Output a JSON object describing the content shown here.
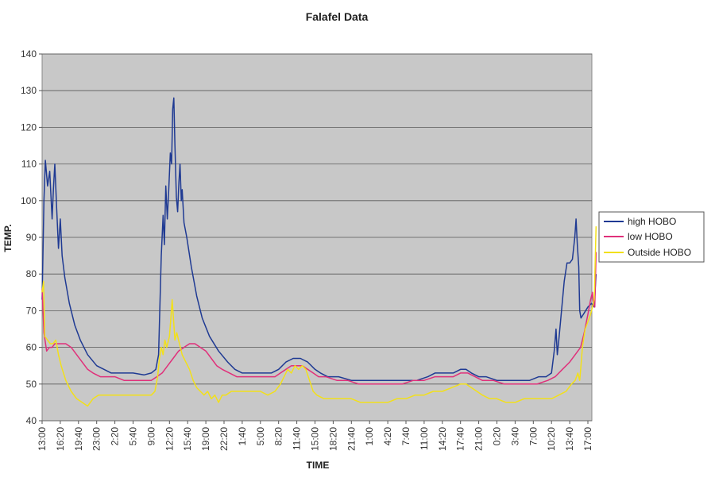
{
  "chart_data": {
    "type": "line",
    "title": "Falafel Data",
    "xlabel": "TIME",
    "ylabel": "TEMP.",
    "ylim": [
      40,
      140
    ],
    "yticks": [
      40,
      50,
      60,
      70,
      80,
      90,
      100,
      110,
      120,
      130,
      140
    ],
    "grid": "horizontal",
    "legend_position": "right",
    "plot_background": "#c8c8c8",
    "categories": [
      "13:00",
      "16:20",
      "19:40",
      "23:00",
      "2:20",
      "5:40",
      "9:00",
      "12:20",
      "15:40",
      "19:00",
      "22:20",
      "1:40",
      "5:00",
      "8:20",
      "11:40",
      "15:00",
      "18:20",
      "21:40",
      "1:00",
      "4:20",
      "7:40",
      "11:00",
      "14:20",
      "17:40",
      "21:00",
      "0:20",
      "3:40",
      "7:00",
      "10:20",
      "13:40",
      "17:00"
    ],
    "series": [
      {
        "name": "high HOBO",
        "color": "#1f3a93",
        "points": [
          [
            0,
            73
          ],
          [
            0.1,
            100
          ],
          [
            0.18,
            111
          ],
          [
            0.3,
            104
          ],
          [
            0.42,
            108
          ],
          [
            0.55,
            95
          ],
          [
            0.62,
            103
          ],
          [
            0.7,
            110
          ],
          [
            0.8,
            98
          ],
          [
            0.9,
            87
          ],
          [
            1.0,
            95
          ],
          [
            1.1,
            85
          ],
          [
            1.25,
            79
          ],
          [
            1.5,
            72
          ],
          [
            1.8,
            66
          ],
          [
            2.1,
            62
          ],
          [
            2.5,
            58
          ],
          [
            3.0,
            55
          ],
          [
            3.4,
            54
          ],
          [
            3.8,
            53
          ],
          [
            4.3,
            53
          ],
          [
            5.0,
            53
          ],
          [
            5.6,
            52.5
          ],
          [
            6.0,
            53
          ],
          [
            6.25,
            54
          ],
          [
            6.4,
            58
          ],
          [
            6.55,
            85
          ],
          [
            6.65,
            96
          ],
          [
            6.72,
            88
          ],
          [
            6.8,
            104
          ],
          [
            6.88,
            95
          ],
          [
            6.95,
            102
          ],
          [
            7.05,
            113
          ],
          [
            7.12,
            110
          ],
          [
            7.18,
            125
          ],
          [
            7.24,
            128
          ],
          [
            7.3,
            115
          ],
          [
            7.38,
            101
          ],
          [
            7.45,
            97
          ],
          [
            7.52,
            105
          ],
          [
            7.58,
            110
          ],
          [
            7.65,
            100
          ],
          [
            7.7,
            103
          ],
          [
            7.8,
            94
          ],
          [
            7.95,
            90
          ],
          [
            8.2,
            82
          ],
          [
            8.5,
            74
          ],
          [
            8.8,
            68
          ],
          [
            9.2,
            63
          ],
          [
            9.7,
            59
          ],
          [
            10.2,
            56
          ],
          [
            10.6,
            54
          ],
          [
            11.0,
            53
          ],
          [
            11.5,
            53
          ],
          [
            12.0,
            53
          ],
          [
            12.6,
            53
          ],
          [
            13.0,
            54
          ],
          [
            13.4,
            56
          ],
          [
            13.8,
            57
          ],
          [
            14.2,
            57
          ],
          [
            14.6,
            56
          ],
          [
            15.0,
            54
          ],
          [
            15.3,
            53
          ],
          [
            15.7,
            52
          ],
          [
            16.3,
            52
          ],
          [
            17.0,
            51
          ],
          [
            17.6,
            51
          ],
          [
            18.2,
            51
          ],
          [
            18.8,
            51
          ],
          [
            19.4,
            51
          ],
          [
            20.0,
            51
          ],
          [
            20.6,
            51
          ],
          [
            21.2,
            52
          ],
          [
            21.6,
            53
          ],
          [
            22.0,
            53
          ],
          [
            22.6,
            53
          ],
          [
            23.0,
            54
          ],
          [
            23.3,
            54
          ],
          [
            23.6,
            53
          ],
          [
            24.0,
            52
          ],
          [
            24.4,
            52
          ],
          [
            25.0,
            51
          ],
          [
            25.6,
            51
          ],
          [
            26.2,
            51
          ],
          [
            26.8,
            51
          ],
          [
            27.3,
            52
          ],
          [
            27.7,
            52
          ],
          [
            28.0,
            53
          ],
          [
            28.15,
            59
          ],
          [
            28.25,
            65
          ],
          [
            28.32,
            58
          ],
          [
            28.4,
            62
          ],
          [
            28.55,
            70
          ],
          [
            28.7,
            78
          ],
          [
            28.85,
            83
          ],
          [
            29.0,
            83
          ],
          [
            29.15,
            84
          ],
          [
            29.28,
            90
          ],
          [
            29.35,
            95
          ],
          [
            29.42,
            88
          ],
          [
            29.5,
            82
          ],
          [
            29.55,
            70
          ],
          [
            29.62,
            68
          ],
          [
            29.75,
            69
          ],
          [
            30.0,
            71
          ],
          [
            30.2,
            72
          ],
          [
            30.35,
            71
          ],
          [
            30.45,
            80
          ]
        ]
      },
      {
        "name": "low HOBO",
        "color": "#e0307a",
        "points": [
          [
            0,
            76
          ],
          [
            0.1,
            64
          ],
          [
            0.25,
            59
          ],
          [
            0.4,
            60
          ],
          [
            0.55,
            60
          ],
          [
            0.7,
            61
          ],
          [
            1.0,
            61
          ],
          [
            1.3,
            61
          ],
          [
            1.6,
            60
          ],
          [
            1.9,
            58
          ],
          [
            2.2,
            56
          ],
          [
            2.5,
            54
          ],
          [
            2.8,
            53
          ],
          [
            3.2,
            52
          ],
          [
            3.6,
            52
          ],
          [
            4.0,
            52
          ],
          [
            4.5,
            51
          ],
          [
            5.0,
            51
          ],
          [
            5.5,
            51
          ],
          [
            6.0,
            51
          ],
          [
            6.3,
            52
          ],
          [
            6.6,
            53
          ],
          [
            6.9,
            55
          ],
          [
            7.2,
            57
          ],
          [
            7.5,
            59
          ],
          [
            7.8,
            60
          ],
          [
            8.1,
            61
          ],
          [
            8.4,
            61
          ],
          [
            8.7,
            60
          ],
          [
            9.0,
            59
          ],
          [
            9.3,
            57
          ],
          [
            9.6,
            55
          ],
          [
            9.9,
            54
          ],
          [
            10.3,
            53
          ],
          [
            10.7,
            52
          ],
          [
            11.2,
            52
          ],
          [
            11.8,
            52
          ],
          [
            12.4,
            52
          ],
          [
            12.8,
            52
          ],
          [
            13.1,
            53
          ],
          [
            13.4,
            54
          ],
          [
            13.7,
            55
          ],
          [
            14.0,
            55
          ],
          [
            14.3,
            55
          ],
          [
            14.6,
            54
          ],
          [
            14.9,
            53
          ],
          [
            15.2,
            52
          ],
          [
            15.6,
            52
          ],
          [
            16.2,
            51
          ],
          [
            16.8,
            51
          ],
          [
            17.4,
            50
          ],
          [
            18.0,
            50
          ],
          [
            18.6,
            50
          ],
          [
            19.2,
            50
          ],
          [
            19.8,
            50
          ],
          [
            20.4,
            51
          ],
          [
            21.0,
            51
          ],
          [
            21.6,
            52
          ],
          [
            22.0,
            52
          ],
          [
            22.6,
            52
          ],
          [
            23.0,
            53
          ],
          [
            23.4,
            53
          ],
          [
            23.8,
            52
          ],
          [
            24.2,
            51
          ],
          [
            24.8,
            51
          ],
          [
            25.4,
            50
          ],
          [
            26.0,
            50
          ],
          [
            26.6,
            50
          ],
          [
            27.2,
            50
          ],
          [
            27.8,
            51
          ],
          [
            28.2,
            52
          ],
          [
            28.6,
            54
          ],
          [
            29.0,
            56
          ],
          [
            29.3,
            58
          ],
          [
            29.6,
            60
          ],
          [
            29.8,
            64
          ],
          [
            30.0,
            69
          ],
          [
            30.15,
            73
          ],
          [
            30.25,
            75
          ],
          [
            30.3,
            72
          ],
          [
            30.38,
            71
          ],
          [
            30.45,
            86
          ]
        ]
      },
      {
        "name": "Outside HOBO",
        "color": "#f2e01a",
        "points": [
          [
            0,
            75
          ],
          [
            0.08,
            78
          ],
          [
            0.15,
            63
          ],
          [
            0.3,
            62
          ],
          [
            0.45,
            61
          ],
          [
            0.6,
            61
          ],
          [
            0.75,
            62
          ],
          [
            0.9,
            58
          ],
          [
            1.05,
            55
          ],
          [
            1.3,
            51
          ],
          [
            1.6,
            48
          ],
          [
            1.9,
            46
          ],
          [
            2.2,
            45
          ],
          [
            2.5,
            44
          ],
          [
            2.8,
            46
          ],
          [
            3.1,
            47
          ],
          [
            3.5,
            47
          ],
          [
            4.0,
            47
          ],
          [
            4.5,
            47
          ],
          [
            5.0,
            47
          ],
          [
            5.5,
            47
          ],
          [
            6.0,
            47
          ],
          [
            6.2,
            48
          ],
          [
            6.35,
            52
          ],
          [
            6.45,
            57
          ],
          [
            6.55,
            60
          ],
          [
            6.65,
            58
          ],
          [
            6.75,
            62
          ],
          [
            6.85,
            60
          ],
          [
            7.0,
            63
          ],
          [
            7.08,
            68
          ],
          [
            7.15,
            73
          ],
          [
            7.22,
            68
          ],
          [
            7.3,
            62
          ],
          [
            7.4,
            64
          ],
          [
            7.55,
            61
          ],
          [
            7.7,
            58
          ],
          [
            7.9,
            56
          ],
          [
            8.1,
            54
          ],
          [
            8.3,
            51
          ],
          [
            8.5,
            49
          ],
          [
            8.7,
            48
          ],
          [
            8.9,
            47
          ],
          [
            9.1,
            48
          ],
          [
            9.3,
            46
          ],
          [
            9.5,
            47
          ],
          [
            9.7,
            45
          ],
          [
            9.9,
            47
          ],
          [
            10.1,
            47
          ],
          [
            10.4,
            48
          ],
          [
            10.8,
            48
          ],
          [
            11.2,
            48
          ],
          [
            11.6,
            48
          ],
          [
            12.0,
            48
          ],
          [
            12.4,
            47
          ],
          [
            12.8,
            48
          ],
          [
            13.1,
            50
          ],
          [
            13.3,
            52
          ],
          [
            13.5,
            54
          ],
          [
            13.7,
            53
          ],
          [
            13.9,
            55
          ],
          [
            14.1,
            54
          ],
          [
            14.3,
            55
          ],
          [
            14.5,
            54
          ],
          [
            14.7,
            51
          ],
          [
            14.9,
            48
          ],
          [
            15.1,
            47
          ],
          [
            15.5,
            46
          ],
          [
            16.0,
            46
          ],
          [
            16.5,
            46
          ],
          [
            17.0,
            46
          ],
          [
            17.5,
            45
          ],
          [
            18.0,
            45
          ],
          [
            18.5,
            45
          ],
          [
            19.0,
            45
          ],
          [
            19.5,
            46
          ],
          [
            20.0,
            46
          ],
          [
            20.5,
            47
          ],
          [
            21.0,
            47
          ],
          [
            21.5,
            48
          ],
          [
            22.0,
            48
          ],
          [
            22.5,
            49
          ],
          [
            23.0,
            50
          ],
          [
            23.3,
            50
          ],
          [
            23.6,
            49
          ],
          [
            23.9,
            48
          ],
          [
            24.2,
            47
          ],
          [
            24.6,
            46
          ],
          [
            25.0,
            46
          ],
          [
            25.5,
            45
          ],
          [
            26.0,
            45
          ],
          [
            26.5,
            46
          ],
          [
            27.0,
            46
          ],
          [
            27.5,
            46
          ],
          [
            28.0,
            46
          ],
          [
            28.4,
            47
          ],
          [
            28.8,
            48
          ],
          [
            29.1,
            50
          ],
          [
            29.3,
            51
          ],
          [
            29.45,
            53
          ],
          [
            29.55,
            51
          ],
          [
            29.62,
            55
          ],
          [
            29.7,
            60
          ],
          [
            29.85,
            65
          ],
          [
            30.0,
            67
          ],
          [
            30.15,
            69
          ],
          [
            30.25,
            71
          ],
          [
            30.35,
            73
          ],
          [
            30.45,
            93
          ]
        ]
      }
    ]
  }
}
